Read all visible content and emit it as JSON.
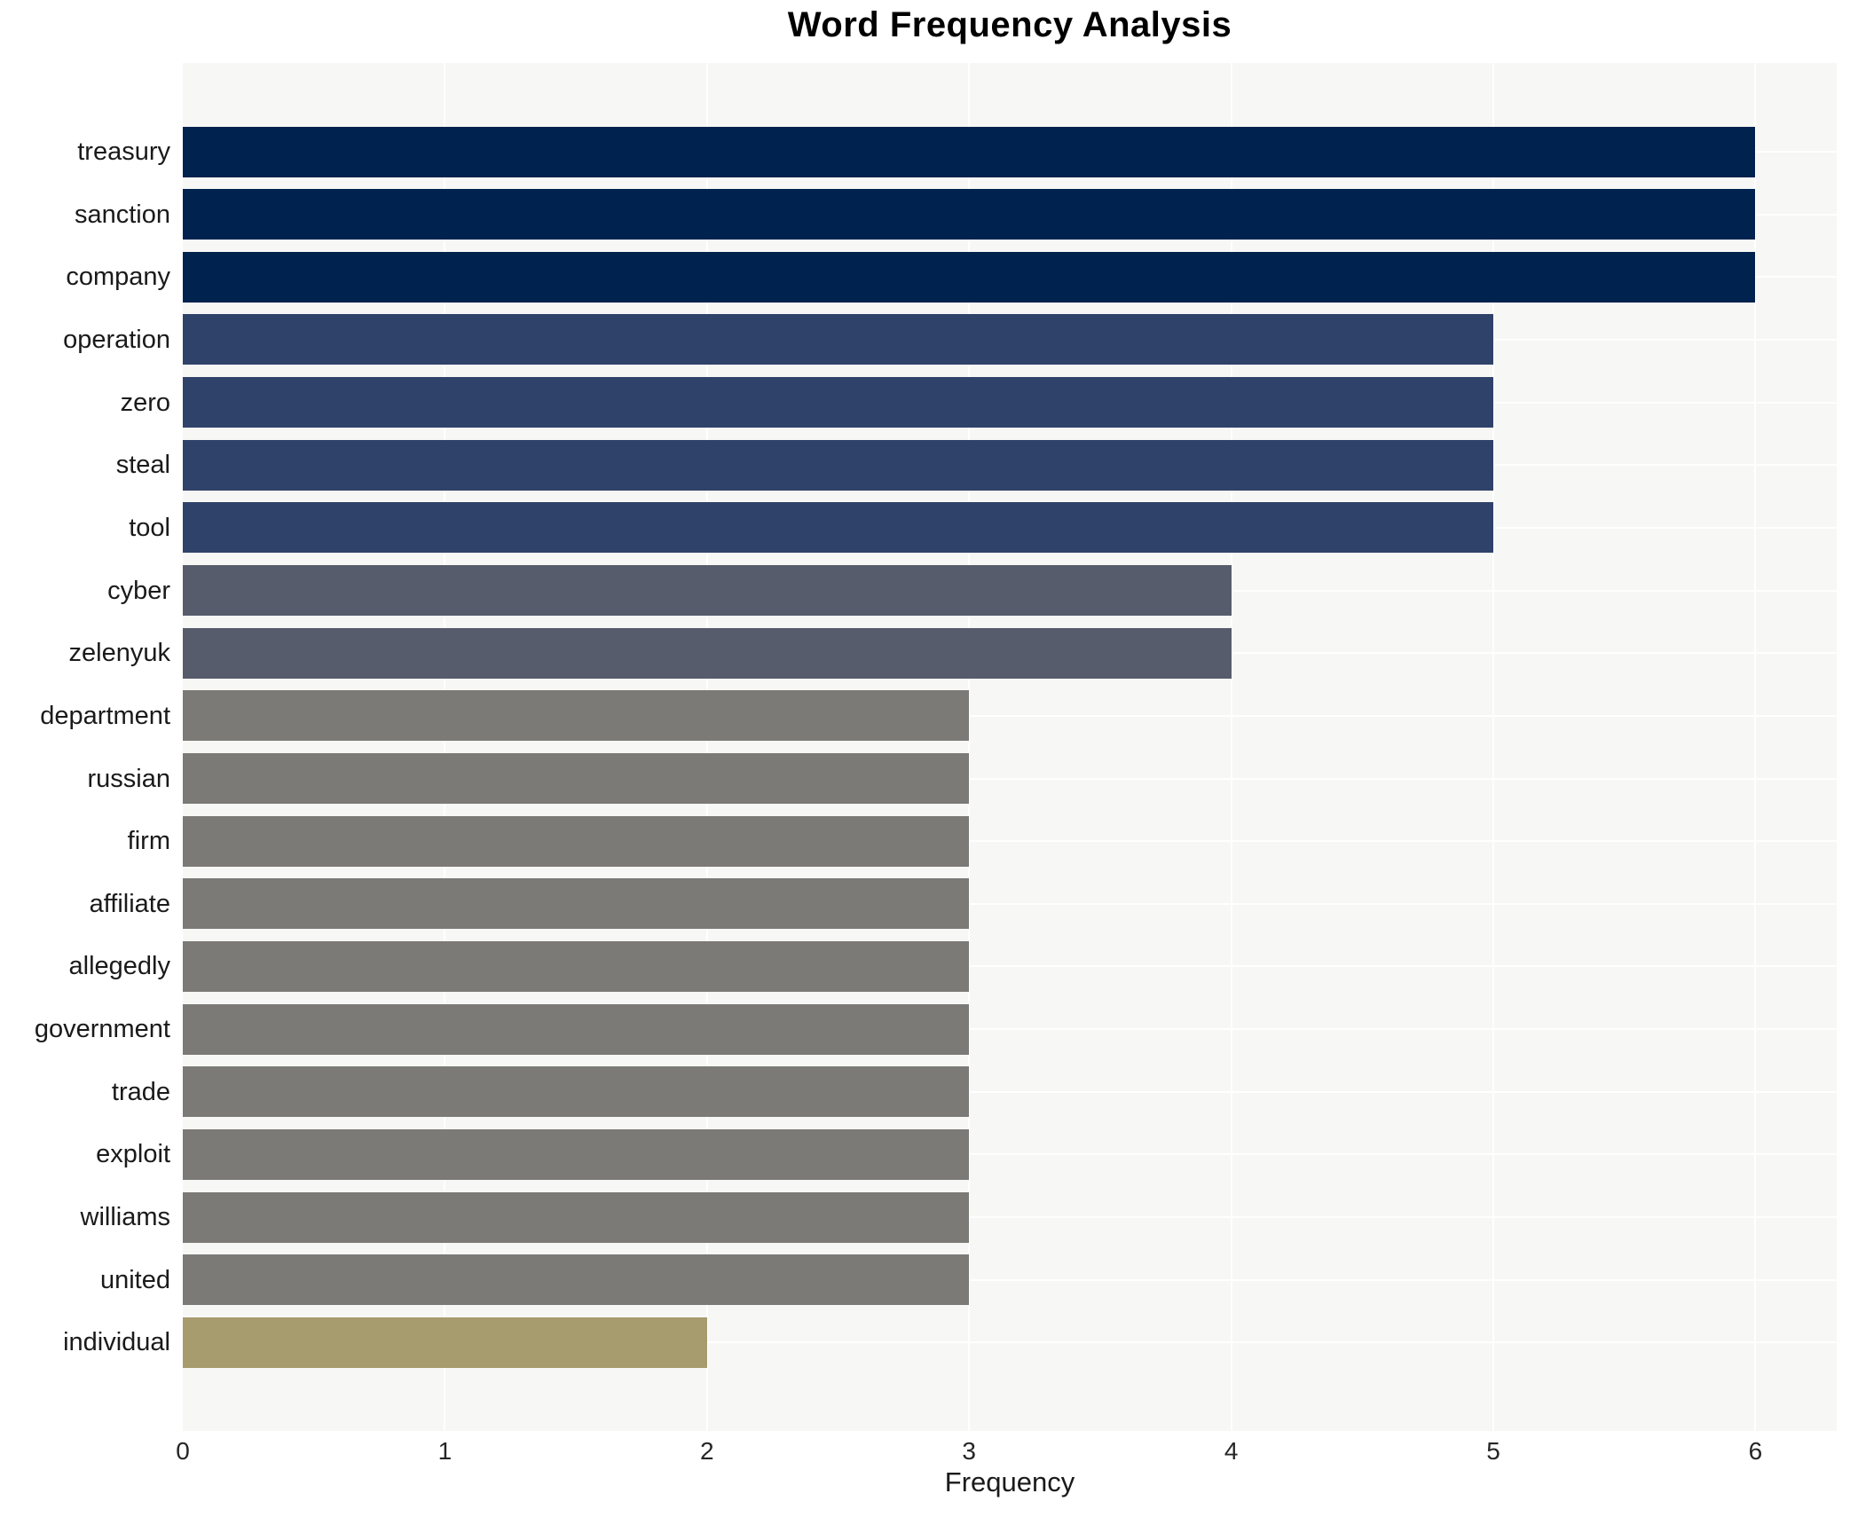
{
  "chart_data": {
    "type": "bar",
    "orientation": "horizontal",
    "title": "Word Frequency Analysis",
    "xlabel": "Frequency",
    "ylabel": "",
    "categories": [
      "treasury",
      "sanction",
      "company",
      "operation",
      "zero",
      "steal",
      "tool",
      "cyber",
      "zelenyuk",
      "department",
      "russian",
      "firm",
      "affiliate",
      "allegedly",
      "government",
      "trade",
      "exploit",
      "williams",
      "united",
      "individual"
    ],
    "values": [
      6,
      6,
      6,
      5,
      5,
      5,
      5,
      4,
      4,
      3,
      3,
      3,
      3,
      3,
      3,
      3,
      3,
      3,
      3,
      2
    ],
    "xlim": [
      0,
      6.31
    ],
    "xticks": [
      0,
      1,
      2,
      3,
      4,
      5,
      6
    ],
    "grid": true,
    "legend": false,
    "colors_by_value": {
      "6": "#00224e",
      "5": "#2f4269",
      "4": "#575c6c",
      "3": "#7b7a76",
      "2": "#a79c6e"
    },
    "plot_background": "#f7f7f5",
    "gridline_color": "#ffffff",
    "text_color": "#1a1a1a"
  }
}
